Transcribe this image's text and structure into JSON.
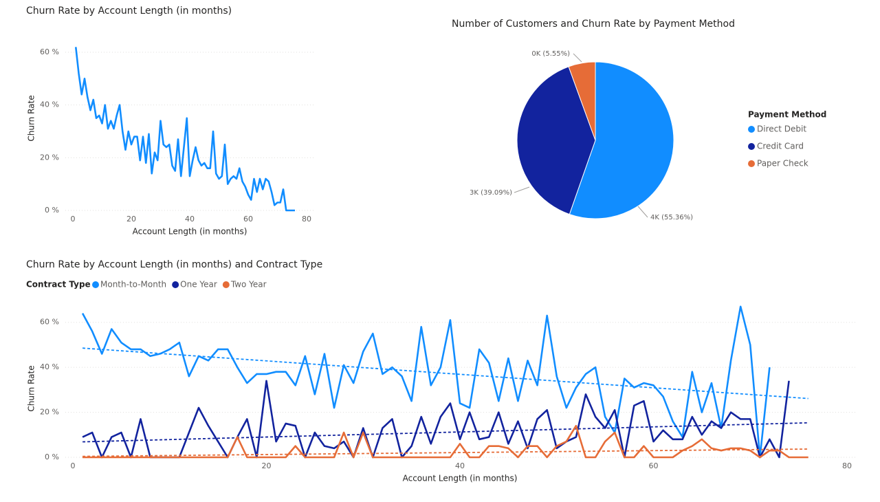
{
  "chart_data": [
    {
      "type": "line",
      "title": "Churn Rate by Account Length (in months)",
      "xlabel": "Account Length (in months)",
      "ylabel": "Churn Rate",
      "x": [
        1,
        2,
        3,
        4,
        5,
        6,
        7,
        8,
        9,
        10,
        11,
        12,
        13,
        14,
        15,
        16,
        17,
        18,
        19,
        20,
        21,
        22,
        23,
        24,
        25,
        26,
        27,
        28,
        29,
        30,
        31,
        32,
        33,
        34,
        35,
        36,
        37,
        38,
        39,
        40,
        41,
        42,
        43,
        44,
        45,
        46,
        47,
        48,
        49,
        50,
        51,
        52,
        53,
        54,
        55,
        56,
        57,
        58,
        59,
        60,
        61,
        62,
        63,
        64,
        65,
        66,
        67,
        68,
        69,
        70,
        71,
        72,
        73,
        74,
        75,
        76
      ],
      "series": [
        {
          "name": "Churn Rate",
          "color": "#118DFF",
          "values": [
            62,
            52,
            44,
            50,
            43,
            38,
            42,
            35,
            36,
            33,
            40,
            31,
            34,
            31,
            36,
            40,
            30,
            23,
            30,
            25,
            28,
            28,
            19,
            28,
            18,
            29,
            14,
            22,
            19,
            34,
            25,
            24,
            25,
            17,
            15,
            27,
            13,
            24,
            35,
            13,
            19,
            24,
            19,
            17,
            18,
            16,
            16,
            30,
            14,
            12,
            13,
            25,
            10,
            12,
            13,
            12,
            16,
            11,
            9,
            6,
            4,
            12,
            7,
            12,
            8,
            12,
            11,
            7,
            2,
            3,
            3,
            8,
            0,
            0,
            0,
            0
          ]
        }
      ],
      "xlim": [
        0,
        80
      ],
      "xticks": [
        0,
        20,
        40,
        60,
        80
      ],
      "ylim": [
        0,
        63
      ],
      "yticks": [
        {
          "value": 0,
          "label": "0 %"
        },
        {
          "value": 20,
          "label": "20 %"
        },
        {
          "value": 40,
          "label": "40 %"
        },
        {
          "value": 60,
          "label": "60 %"
        }
      ],
      "grid": true,
      "trendline": false
    },
    {
      "type": "pie",
      "title": "Number of Customers and Churn Rate by Payment Method",
      "legend_title": "Payment Method",
      "categories": [
        "Direct Debit",
        "Credit Card",
        "Paper Check"
      ],
      "values": [
        55.36,
        39.09,
        5.55
      ],
      "value_labels": [
        "4K (55.36%)",
        "3K (39.09%)",
        "0K (5.55%)"
      ],
      "colors": [
        "#118DFF",
        "#12239E",
        "#E66C37"
      ],
      "legend": "right"
    },
    {
      "type": "line",
      "title": "Churn Rate by Account Length (in months) and Contract Type",
      "legend_title": "Contract Type",
      "xlabel": "Account Length (in months)",
      "ylabel": "Churn Rate",
      "x": [
        1,
        2,
        3,
        4,
        5,
        6,
        7,
        8,
        9,
        10,
        11,
        12,
        13,
        14,
        15,
        16,
        17,
        18,
        19,
        20,
        21,
        22,
        23,
        24,
        25,
        26,
        27,
        28,
        29,
        30,
        31,
        32,
        33,
        34,
        35,
        36,
        37,
        38,
        39,
        40,
        41,
        42,
        43,
        44,
        45,
        46,
        47,
        48,
        49,
        50,
        51,
        52,
        53,
        54,
        55,
        56,
        57,
        58,
        59,
        60,
        61,
        62,
        63,
        64,
        65,
        66,
        67,
        68,
        69,
        70,
        71,
        72,
        73,
        74,
        75,
        76
      ],
      "series": [
        {
          "name": "Month-to-Month",
          "color": "#118DFF",
          "values": [
            64,
            56,
            46,
            57,
            51,
            48,
            48,
            45,
            46,
            48,
            51,
            36,
            45,
            43,
            48,
            48,
            40,
            33,
            37,
            37,
            38,
            38,
            32,
            45,
            28,
            46,
            22,
            41,
            33,
            47,
            55,
            37,
            40,
            36,
            25,
            58,
            32,
            40,
            61,
            24,
            22,
            48,
            42,
            25,
            44,
            25,
            43,
            32,
            63,
            36,
            22,
            31,
            37,
            40,
            18,
            11,
            35,
            31,
            33,
            32,
            27,
            16,
            9,
            38,
            20,
            33,
            13,
            43,
            67,
            50,
            0,
            40,
            null,
            null,
            null,
            null
          ]
        },
        {
          "name": "One Year",
          "color": "#12239E",
          "values": [
            9,
            11,
            0,
            9,
            11,
            0,
            17,
            0,
            0,
            0,
            0,
            11,
            22,
            14,
            7,
            0,
            9,
            17,
            0,
            34,
            7,
            15,
            14,
            0,
            11,
            5,
            4,
            7,
            0,
            13,
            0,
            13,
            17,
            0,
            5,
            18,
            6,
            18,
            24,
            8,
            20,
            8,
            9,
            20,
            6,
            16,
            4,
            17,
            21,
            4,
            7,
            9,
            28,
            18,
            13,
            21,
            0,
            23,
            25,
            7,
            12,
            8,
            8,
            18,
            10,
            16,
            13,
            20,
            17,
            17,
            0,
            8,
            0,
            34,
            null,
            null
          ]
        },
        {
          "name": "Two Year",
          "color": "#E66C37",
          "values": [
            0,
            0,
            0,
            0,
            0,
            0,
            0,
            0,
            0,
            0,
            0,
            0,
            0,
            0,
            0,
            0,
            9,
            0,
            0,
            0,
            0,
            0,
            5,
            0,
            0,
            0,
            0,
            11,
            0,
            11,
            0,
            0,
            0,
            0,
            0,
            0,
            0,
            0,
            0,
            6,
            0,
            0,
            5,
            5,
            4,
            0,
            5,
            5,
            0,
            5,
            7,
            14,
            0,
            0,
            7,
            11,
            0,
            0,
            5,
            0,
            0,
            0,
            3,
            5,
            8,
            4,
            3,
            4,
            4,
            3,
            0,
            3,
            3,
            0,
            0,
            0
          ]
        }
      ],
      "xlim": [
        0,
        80
      ],
      "xticks": [
        0,
        20,
        40,
        60,
        80
      ],
      "ylim": [
        0,
        70
      ],
      "yticks": [
        {
          "value": 0,
          "label": "0 %"
        },
        {
          "value": 20,
          "label": "20 %"
        },
        {
          "value": 40,
          "label": "40 %"
        },
        {
          "value": 60,
          "label": "60 %"
        }
      ],
      "grid": true,
      "trendline": true,
      "legend": "top-left"
    }
  ]
}
